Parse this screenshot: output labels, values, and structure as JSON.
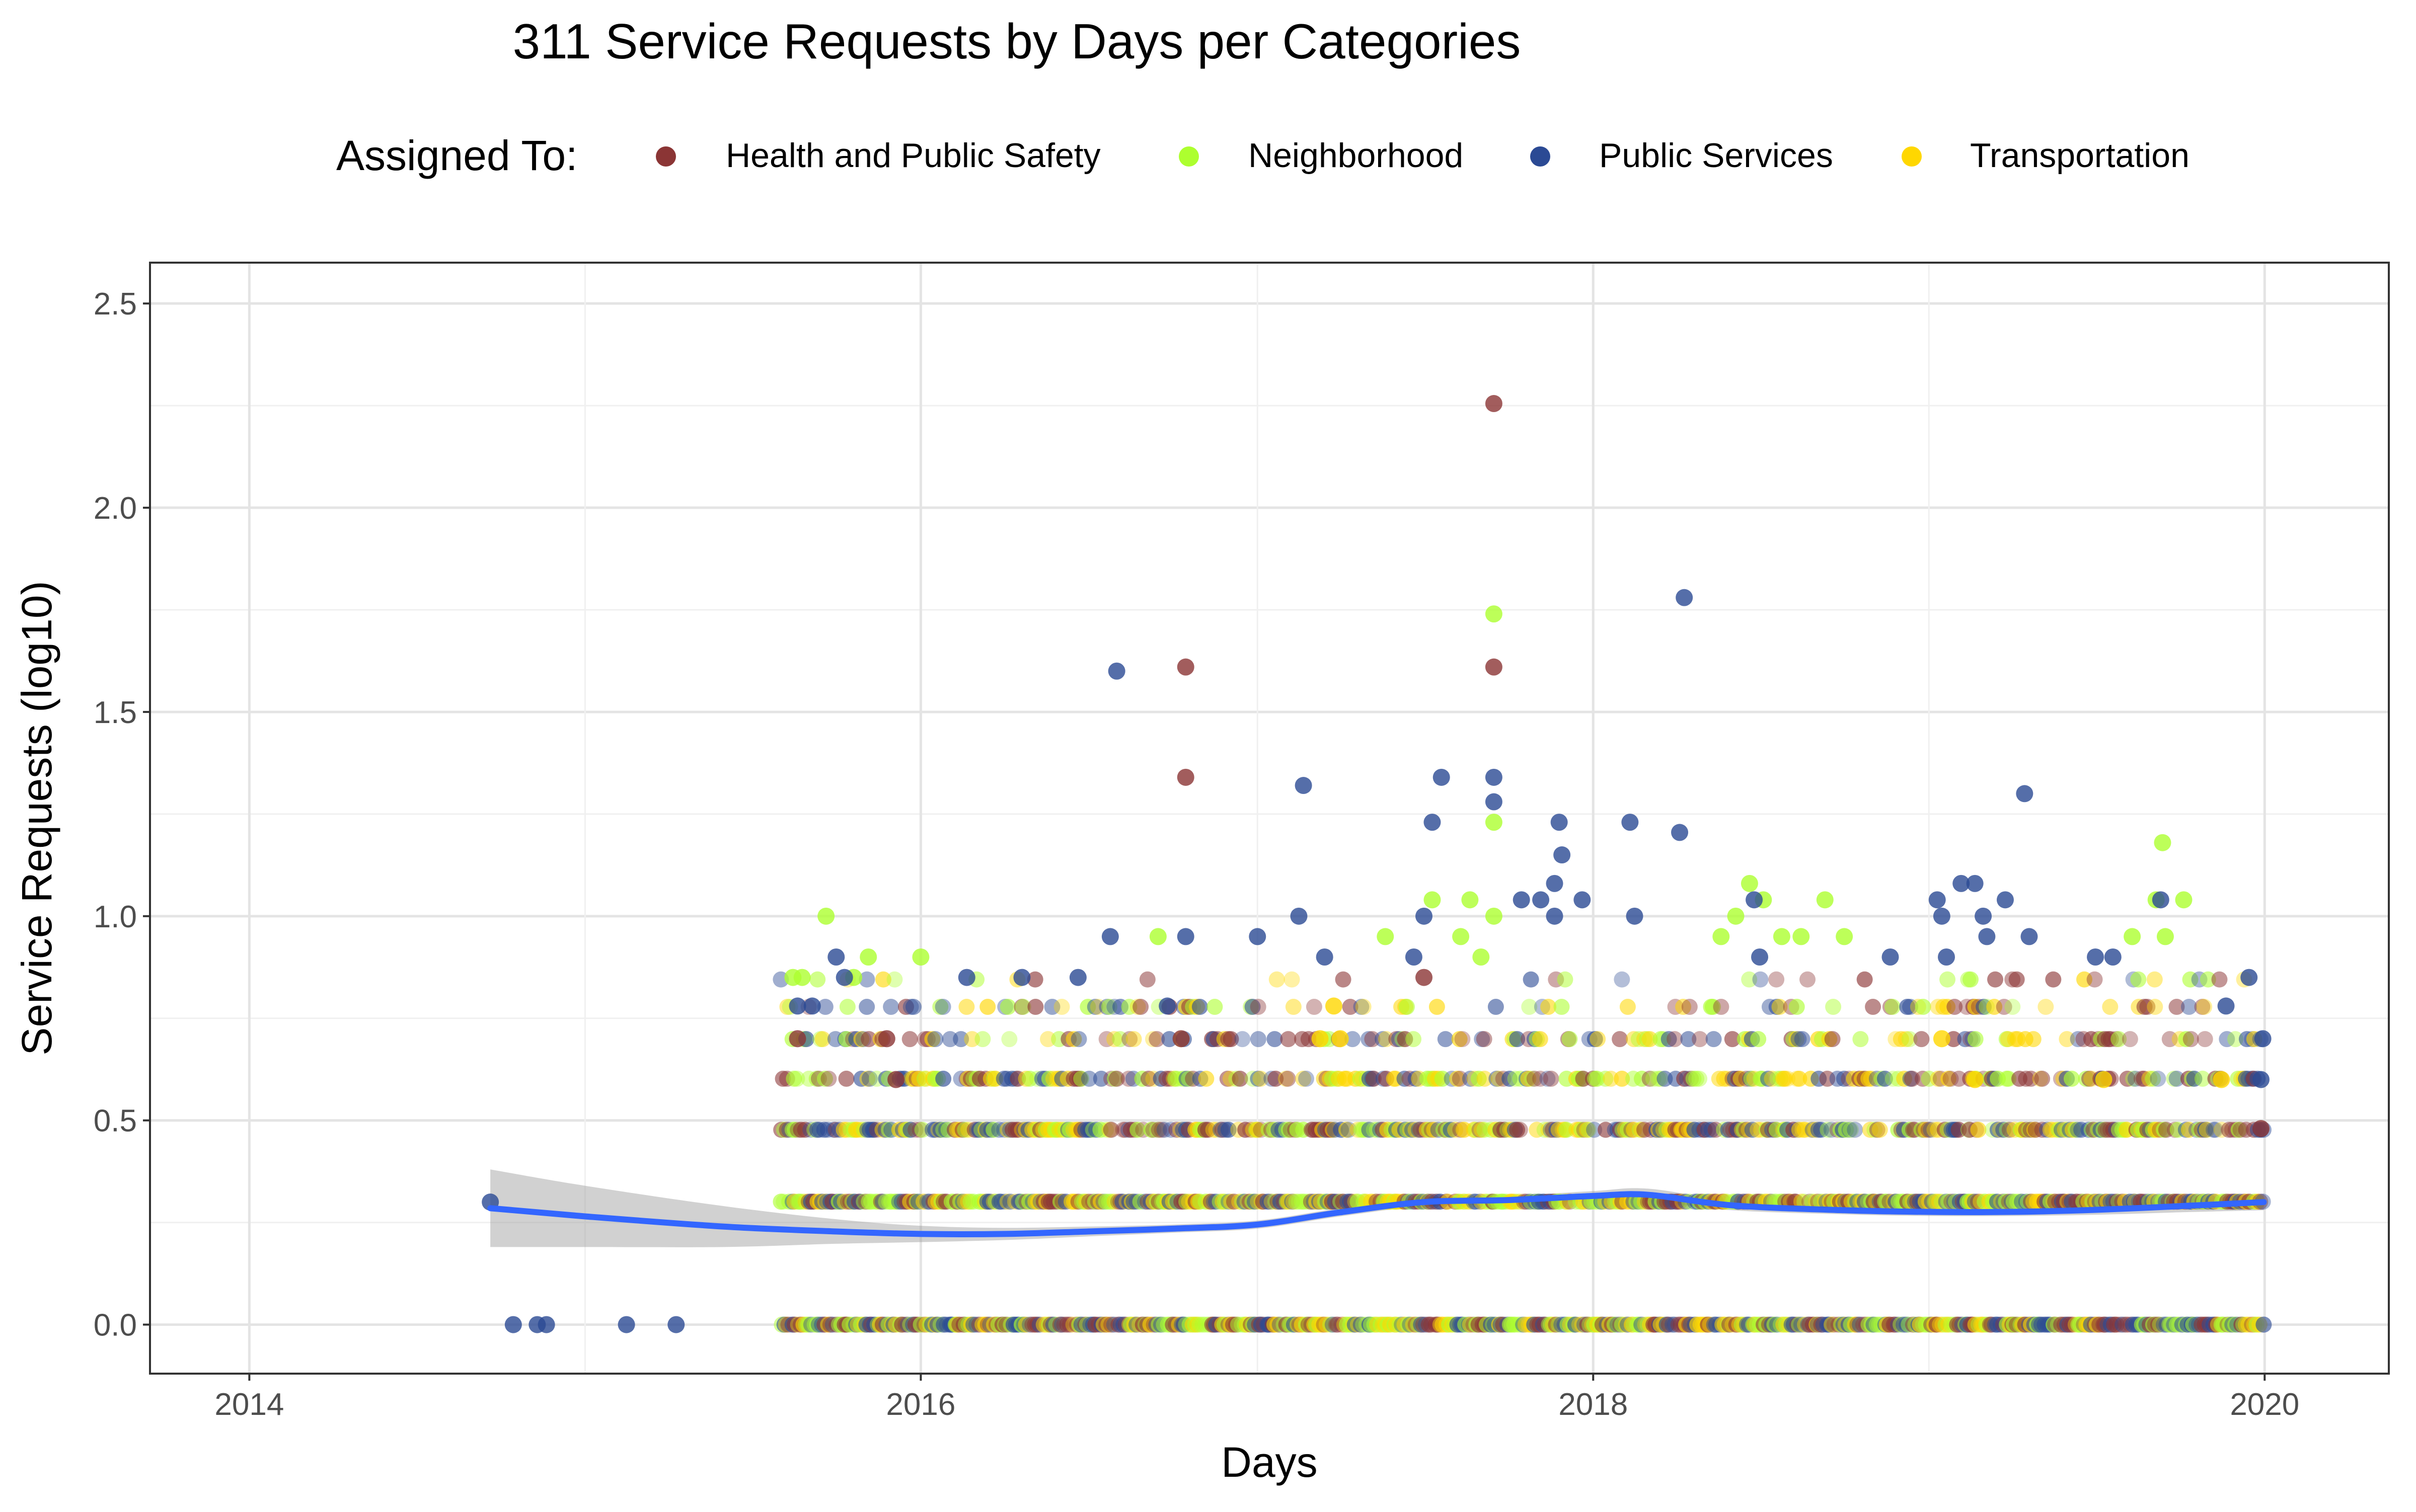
{
  "chart_data": {
    "type": "scatter",
    "title": "311 Service Requests by Days per Categories",
    "xlabel": "Days",
    "ylabel": "Service Requests (log10)",
    "x_axis_type": "date",
    "xlim": [
      "2013-09-15",
      "2020-05-15"
    ],
    "ylim": [
      -0.12,
      2.6
    ],
    "x_ticks": [
      "2014",
      "2016",
      "2018",
      "2020"
    ],
    "y_ticks": [
      "0.0",
      "0.5",
      "1.0",
      "1.5",
      "2.0",
      "2.5"
    ],
    "grid": true,
    "legend": {
      "title": "Assigned To:",
      "position": "top",
      "items": [
        {
          "name": "Health and Public Safety",
          "color": "#8b3535"
        },
        {
          "name": "Neighborhood",
          "color": "#adff2f"
        },
        {
          "name": "Public Services",
          "color": "#2b4a94"
        },
        {
          "name": "Transportation",
          "color": "#ffd700"
        }
      ]
    },
    "series": [
      {
        "name": "Health and Public Safety",
        "color": "#8b3535",
        "points": [
          [
            "2015-08-20",
            0.7
          ],
          [
            "2015-11-25",
            0.7
          ],
          [
            "2015-12-05",
            0.6
          ],
          [
            "2016-10-15",
            1.61
          ],
          [
            "2016-10-15",
            1.34
          ],
          [
            "2016-10-10",
            0.7
          ],
          [
            "2017-07-01",
            0.85
          ],
          [
            "2017-09-15",
            2.255
          ],
          [
            "2017-09-15",
            1.61
          ],
          [
            "2019-12-28",
            0.48
          ]
        ]
      },
      {
        "name": "Neighborhood",
        "color": "#adff2f",
        "points": [
          [
            "2015-08-15",
            0.85
          ],
          [
            "2015-08-25",
            0.85
          ],
          [
            "2015-09-20",
            1.0
          ],
          [
            "2015-10-20",
            0.85
          ],
          [
            "2015-11-05",
            0.9
          ],
          [
            "2016-01-01",
            0.9
          ],
          [
            "2016-09-15",
            0.95
          ],
          [
            "2017-05-20",
            0.95
          ],
          [
            "2017-07-10",
            1.04
          ],
          [
            "2017-08-10",
            0.95
          ],
          [
            "2017-08-20",
            1.04
          ],
          [
            "2017-09-01",
            0.9
          ],
          [
            "2017-09-15",
            1.74
          ],
          [
            "2017-09-15",
            1.23
          ],
          [
            "2017-09-15",
            1.0
          ],
          [
            "2018-05-20",
            0.95
          ],
          [
            "2018-06-05",
            1.0
          ],
          [
            "2018-06-20",
            1.08
          ],
          [
            "2018-07-05",
            1.04
          ],
          [
            "2018-07-25",
            0.95
          ],
          [
            "2018-08-15",
            0.95
          ],
          [
            "2018-09-10",
            1.04
          ],
          [
            "2018-10-01",
            0.95
          ],
          [
            "2019-08-10",
            0.95
          ],
          [
            "2019-09-05",
            1.04
          ],
          [
            "2019-09-12",
            1.18
          ],
          [
            "2019-09-15",
            0.95
          ],
          [
            "2019-10-05",
            1.04
          ]
        ]
      },
      {
        "name": "Public Services",
        "color": "#2b4a94",
        "points": [
          [
            "2014-09-20",
            0.3
          ],
          [
            "2014-10-15",
            0.0
          ],
          [
            "2014-11-10",
            0.0
          ],
          [
            "2014-11-20",
            0.0
          ],
          [
            "2015-02-15",
            0.0
          ],
          [
            "2015-04-10",
            0.0
          ],
          [
            "2015-08-20",
            0.78
          ],
          [
            "2015-09-05",
            0.78
          ],
          [
            "2015-10-01",
            0.9
          ],
          [
            "2015-10-10",
            0.85
          ],
          [
            "2016-02-20",
            0.85
          ],
          [
            "2016-04-20",
            0.85
          ],
          [
            "2016-06-20",
            0.85
          ],
          [
            "2016-07-25",
            0.95
          ],
          [
            "2016-08-01",
            1.6
          ],
          [
            "2016-10-15",
            0.95
          ],
          [
            "2016-09-25",
            0.78
          ],
          [
            "2017-01-01",
            0.95
          ],
          [
            "2017-02-15",
            1.0
          ],
          [
            "2017-02-20",
            1.32
          ],
          [
            "2017-03-15",
            0.9
          ],
          [
            "2017-06-20",
            0.9
          ],
          [
            "2017-07-01",
            1.0
          ],
          [
            "2017-07-10",
            1.23
          ],
          [
            "2017-07-20",
            1.34
          ],
          [
            "2017-09-15",
            1.34
          ],
          [
            "2017-09-15",
            1.28
          ],
          [
            "2017-10-15",
            1.04
          ],
          [
            "2017-11-05",
            1.04
          ],
          [
            "2017-11-20",
            1.08
          ],
          [
            "2017-11-25",
            1.23
          ],
          [
            "2017-11-28",
            1.15
          ],
          [
            "2017-11-20",
            1.0
          ],
          [
            "2017-12-20",
            1.04
          ],
          [
            "2018-02-10",
            1.23
          ],
          [
            "2018-02-15",
            1.0
          ],
          [
            "2018-04-05",
            1.205
          ],
          [
            "2018-04-10",
            1.78
          ],
          [
            "2018-06-25",
            1.04
          ],
          [
            "2018-07-01",
            0.9
          ],
          [
            "2018-11-20",
            0.9
          ],
          [
            "2019-01-10",
            1.04
          ],
          [
            "2019-01-15",
            1.0
          ],
          [
            "2019-01-20",
            0.9
          ],
          [
            "2019-02-05",
            1.08
          ],
          [
            "2019-02-20",
            1.08
          ],
          [
            "2019-03-01",
            1.0
          ],
          [
            "2019-03-05",
            0.95
          ],
          [
            "2019-03-25",
            1.04
          ],
          [
            "2019-04-15",
            1.3
          ],
          [
            "2019-04-20",
            0.95
          ],
          [
            "2019-07-01",
            0.9
          ],
          [
            "2019-07-20",
            0.9
          ],
          [
            "2019-09-10",
            1.04
          ],
          [
            "2019-11-20",
            0.78
          ],
          [
            "2019-12-15",
            0.85
          ],
          [
            "2019-12-28",
            0.6
          ],
          [
            "2019-12-30",
            0.7
          ]
        ]
      },
      {
        "name": "Transportation",
        "color": "#ffd700",
        "points": [
          [
            "2017-03-10",
            0.7
          ],
          [
            "2017-03-25",
            0.78
          ],
          [
            "2017-04-01",
            0.7
          ],
          [
            "2019-01-15",
            0.7
          ],
          [
            "2019-02-20",
            0.6
          ],
          [
            "2019-07-10",
            0.6
          ],
          [
            "2019-11-15",
            0.6
          ]
        ]
      }
    ],
    "dense_bands": {
      "description_levels": [
        0.0,
        0.301,
        0.477,
        0.602,
        0.699,
        0.778,
        0.845
      ],
      "start": "2015-08-01",
      "end": "2019-12-31"
    },
    "trend": {
      "type": "smooth",
      "color": "#3366ff",
      "band_color": "#999999",
      "points": [
        [
          "2014-09-20",
          0.285
        ],
        [
          "2015-01-01",
          0.265
        ],
        [
          "2015-06-01",
          0.24
        ],
        [
          "2015-10-01",
          0.228
        ],
        [
          "2016-01-01",
          0.222
        ],
        [
          "2016-04-01",
          0.222
        ],
        [
          "2016-07-01",
          0.228
        ],
        [
          "2016-10-01",
          0.235
        ],
        [
          "2017-01-01",
          0.245
        ],
        [
          "2017-04-01",
          0.275
        ],
        [
          "2017-07-01",
          0.3
        ],
        [
          "2017-10-01",
          0.305
        ],
        [
          "2018-01-01",
          0.315
        ],
        [
          "2018-03-01",
          0.318
        ],
        [
          "2018-06-01",
          0.292
        ],
        [
          "2018-10-01",
          0.28
        ],
        [
          "2019-01-01",
          0.276
        ],
        [
          "2019-04-01",
          0.276
        ],
        [
          "2019-07-01",
          0.281
        ],
        [
          "2019-10-01",
          0.29
        ],
        [
          "2019-12-31",
          0.3
        ]
      ],
      "band_halfwidth": [
        0.095,
        0.075,
        0.05,
        0.03,
        0.02,
        0.015,
        0.012,
        0.01,
        0.01,
        0.01,
        0.01,
        0.01,
        0.012,
        0.015,
        0.012,
        0.01,
        0.01,
        0.01,
        0.012,
        0.015,
        0.02
      ]
    }
  }
}
